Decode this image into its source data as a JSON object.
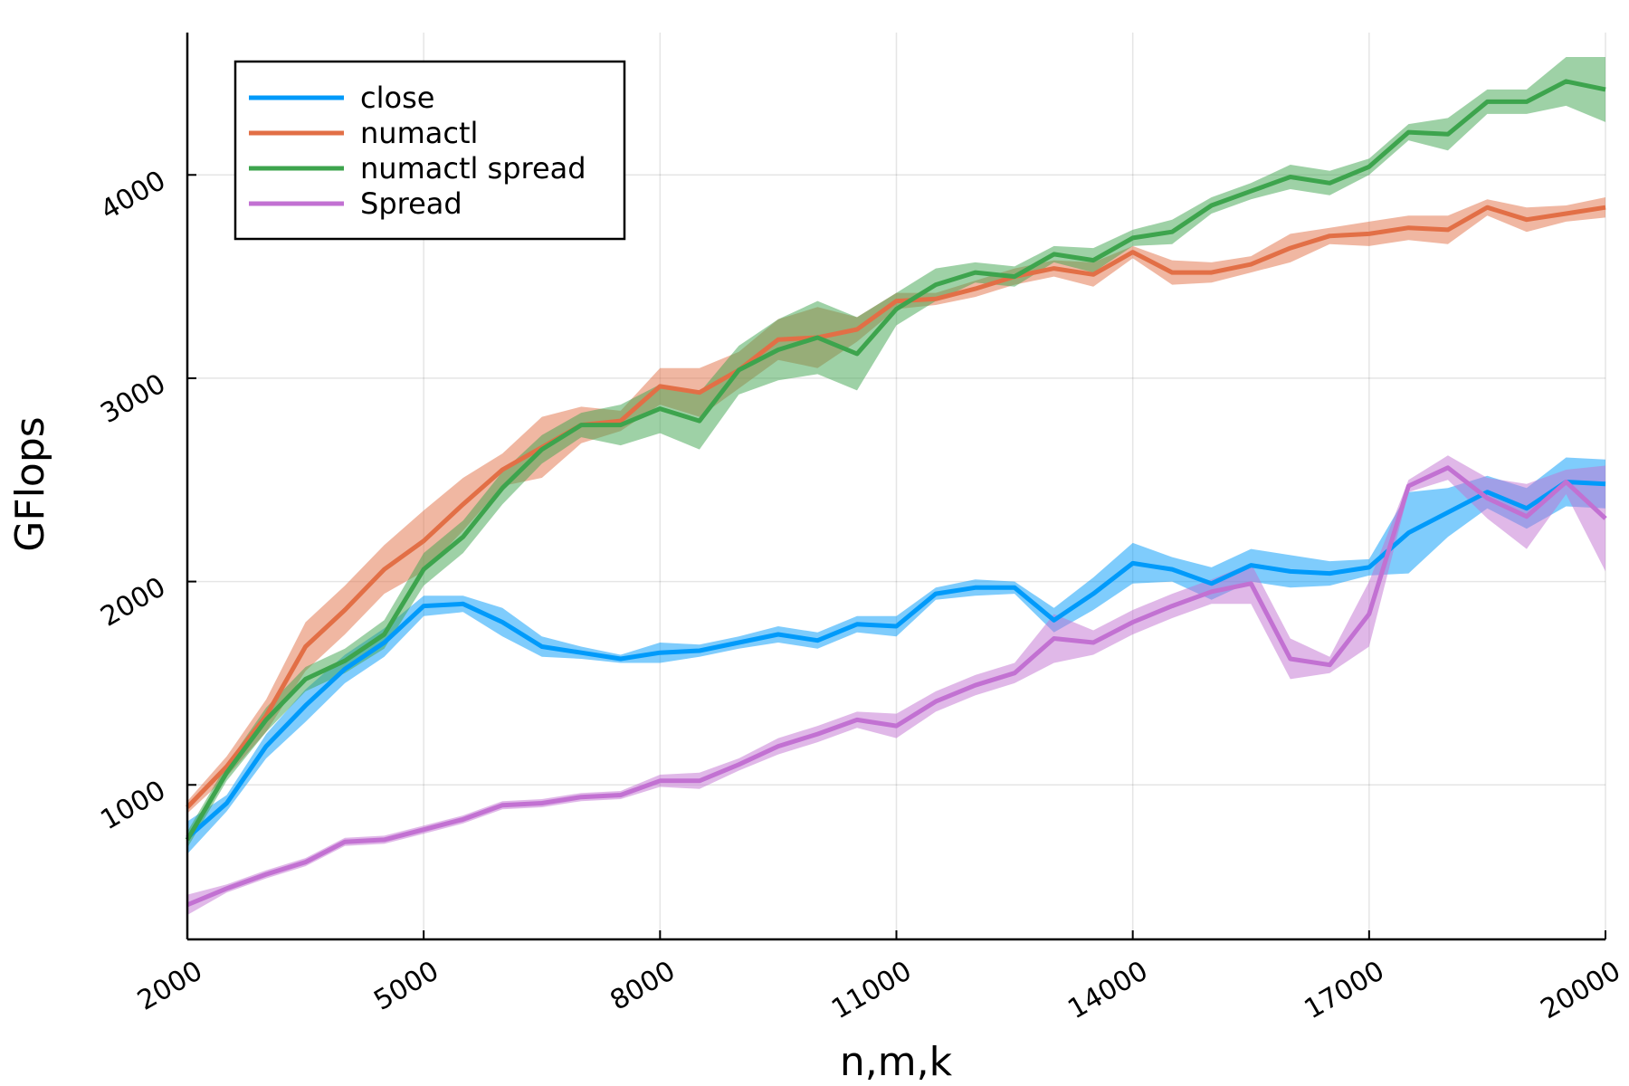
{
  "chart_data": {
    "type": "line",
    "title": "",
    "xlabel": "n,m,k",
    "ylabel": "GFlops",
    "xlim": [
      2000,
      20000
    ],
    "ylim": [
      240,
      4700
    ],
    "xticks": [
      2000,
      5000,
      8000,
      11000,
      14000,
      17000,
      20000
    ],
    "yticks": [
      1000,
      2000,
      3000,
      4000
    ],
    "grid": true,
    "legend_position": "top-left",
    "x": [
      2000,
      2500,
      3000,
      3500,
      4000,
      4500,
      5000,
      5500,
      6000,
      6500,
      7000,
      7500,
      8000,
      8500,
      9000,
      9500,
      10000,
      10500,
      11000,
      11500,
      12000,
      12500,
      13000,
      13500,
      14000,
      14500,
      15000,
      15500,
      16000,
      16500,
      17000,
      17500,
      18000,
      18500,
      19000,
      19500,
      20000
    ],
    "series": [
      {
        "name": "close",
        "color": "#009AFA",
        "values": [
          740,
          910,
          1190,
          1390,
          1570,
          1700,
          1880,
          1890,
          1800,
          1680,
          1650,
          1620,
          1650,
          1660,
          1700,
          1740,
          1710,
          1790,
          1780,
          1940,
          1970,
          1970,
          1810,
          1940,
          2090,
          2060,
          1990,
          2080,
          2050,
          2040,
          2070,
          2240,
          2340,
          2440,
          2360,
          2490,
          2480
        ],
        "band": [
          80,
          40,
          60,
          80,
          70,
          70,
          50,
          40,
          70,
          50,
          30,
          20,
          50,
          30,
          30,
          40,
          40,
          40,
          50,
          30,
          40,
          30,
          60,
          80,
          100,
          60,
          80,
          80,
          80,
          60,
          40,
          200,
          120,
          80,
          100,
          120,
          120
        ]
      },
      {
        "name": "numactl",
        "color": "#E26F46",
        "values": [
          890,
          1090,
          1340,
          1680,
          1860,
          2060,
          2200,
          2380,
          2550,
          2660,
          2770,
          2790,
          2960,
          2930,
          3040,
          3190,
          3200,
          3240,
          3380,
          3390,
          3440,
          3500,
          3540,
          3510,
          3620,
          3520,
          3520,
          3560,
          3640,
          3700,
          3710,
          3740,
          3730,
          3840,
          3780,
          3810,
          3840
        ],
        "band": [
          30,
          50,
          80,
          120,
          120,
          120,
          150,
          130,
          80,
          150,
          90,
          50,
          90,
          120,
          90,
          100,
          150,
          60,
          40,
          30,
          40,
          40,
          40,
          60,
          30,
          60,
          50,
          40,
          70,
          40,
          60,
          60,
          70,
          40,
          60,
          40,
          50
        ]
      },
      {
        "name": "numactl spread",
        "color": "#3DA44D",
        "values": [
          730,
          1060,
          1320,
          1520,
          1610,
          1740,
          2060,
          2220,
          2460,
          2650,
          2770,
          2770,
          2850,
          2790,
          3040,
          3140,
          3200,
          3120,
          3340,
          3460,
          3520,
          3500,
          3610,
          3580,
          3690,
          3720,
          3850,
          3920,
          3990,
          3960,
          4040,
          4210,
          4200,
          4360,
          4360,
          4460,
          4420
        ],
        "band": [
          40,
          40,
          60,
          60,
          60,
          70,
          80,
          80,
          80,
          70,
          60,
          100,
          120,
          140,
          120,
          150,
          180,
          180,
          80,
          80,
          50,
          50,
          40,
          60,
          40,
          60,
          40,
          40,
          60,
          60,
          40,
          40,
          80,
          60,
          60,
          120,
          160
        ]
      },
      {
        "name": "Spread",
        "color": "#C271D2",
        "values": [
          410,
          490,
          560,
          620,
          720,
          730,
          780,
          830,
          900,
          910,
          940,
          950,
          1020,
          1020,
          1100,
          1190,
          1250,
          1320,
          1290,
          1410,
          1490,
          1550,
          1720,
          1700,
          1800,
          1880,
          1950,
          1990,
          1620,
          1590,
          1840,
          2470,
          2560,
          2410,
          2320,
          2490,
          2310
        ],
        "band": [
          50,
          20,
          20,
          20,
          20,
          20,
          20,
          20,
          20,
          20,
          20,
          20,
          30,
          40,
          30,
          40,
          40,
          40,
          60,
          50,
          50,
          50,
          120,
          60,
          60,
          60,
          60,
          100,
          100,
          40,
          160,
          30,
          60,
          100,
          160,
          60,
          260
        ]
      }
    ]
  }
}
